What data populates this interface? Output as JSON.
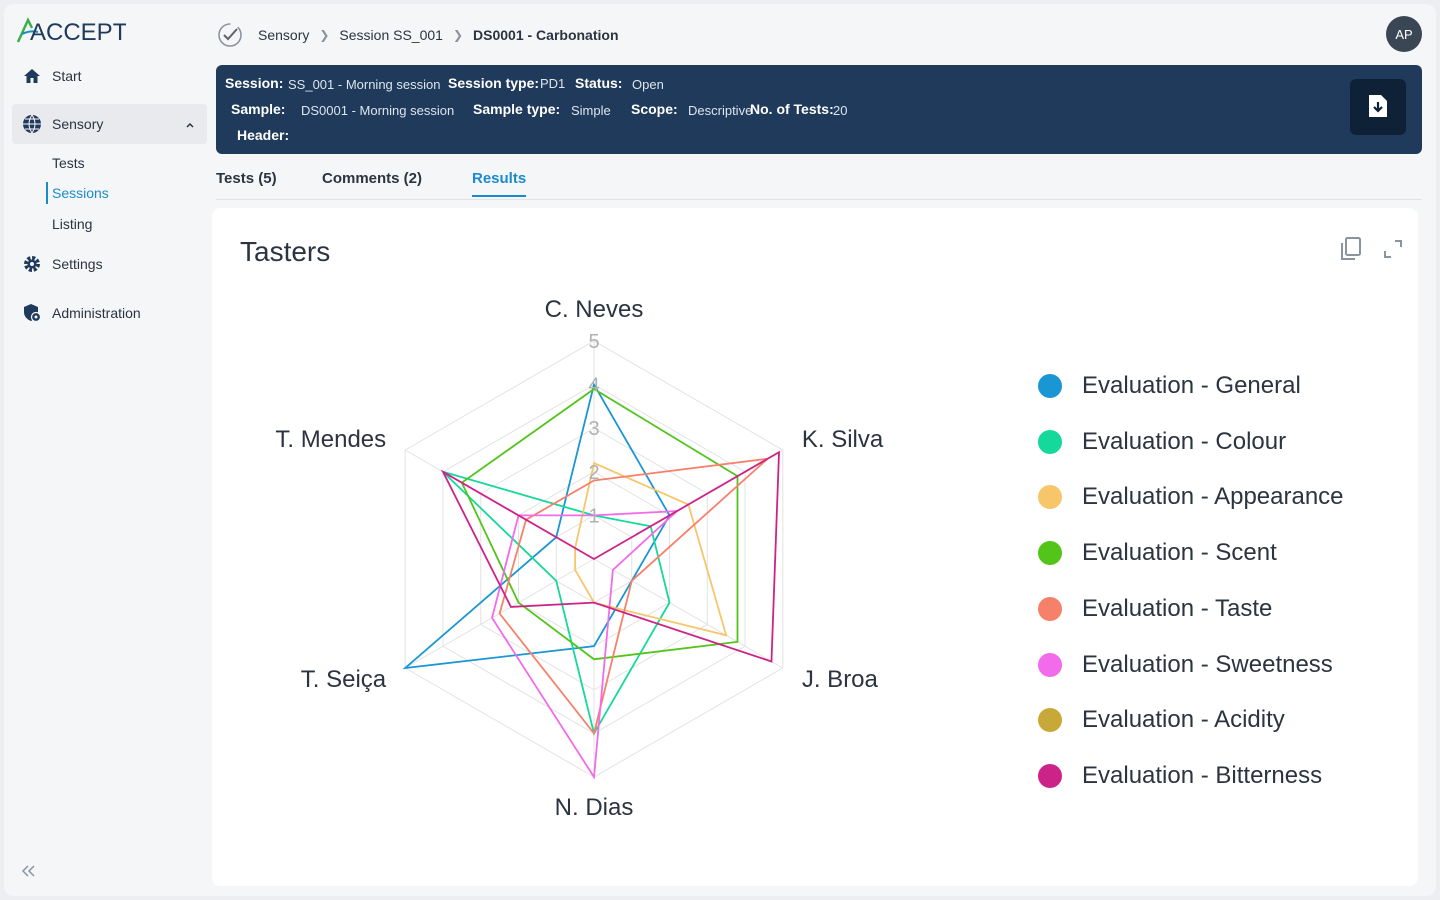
{
  "app": {
    "logo_text": "ACCEPT"
  },
  "sidebar": {
    "items": [
      {
        "label": "Start",
        "icon": "home-icon"
      },
      {
        "label": "Sensory",
        "icon": "globe-icon"
      },
      {
        "label": "Settings",
        "icon": "gear-icon"
      },
      {
        "label": "Administration",
        "icon": "shield-icon"
      }
    ],
    "sub_items": [
      {
        "label": "Tests"
      },
      {
        "label": "Sessions"
      },
      {
        "label": "Listing"
      }
    ]
  },
  "breadcrumb": [
    "Sensory",
    "Session SS_001",
    "DS0001 - Carbonation"
  ],
  "user": {
    "initials": "AP"
  },
  "banner": {
    "session_label": "Session:",
    "session_value": "SS_001 - Morning session",
    "session_type_label": "Session type:",
    "session_type_value": "PD1",
    "status_label": "Status:",
    "status_value": "Open",
    "sample_label": "Sample:",
    "sample_value": "DS0001 - Morning session",
    "sample_type_label": "Sample type:",
    "sample_type_value": "Simple",
    "scope_label": "Scope:",
    "scope_value": "Descriptive",
    "tests_label": "No. of Tests:",
    "tests_value": "20",
    "header_label": "Header:"
  },
  "tabs": [
    {
      "label": "Tests (5)"
    },
    {
      "label": "Comments (2)"
    },
    {
      "label": "Results"
    }
  ],
  "card": {
    "title": "Tasters"
  },
  "chart_data": {
    "type": "radar",
    "axes": [
      "C. Neves",
      "K. Silva",
      "J. Broa",
      "N. Dias",
      "T. Seiça",
      "T. Mendes"
    ],
    "radial_range": [
      0,
      5
    ],
    "radial_ticks": [
      "1",
      "2",
      "3",
      "4",
      "5"
    ],
    "legend_position": "right",
    "series": [
      {
        "name": "Evaluation - General",
        "color": "#1a96d4",
        "values": [
          4,
          2,
          1,
          2,
          5,
          1
        ]
      },
      {
        "name": "Evaluation - Colour",
        "color": "#14d99a",
        "values": [
          1,
          1.5,
          2,
          4,
          1,
          4
        ]
      },
      {
        "name": "Evaluation - Appearance",
        "color": "#f7c56a",
        "values": [
          2.2,
          2.5,
          3.5,
          1,
          0.5,
          0.5
        ]
      },
      {
        "name": "Evaluation - Scent",
        "color": "#52c41a",
        "values": [
          3.9,
          3.8,
          3.8,
          2.3,
          2,
          3.5
        ]
      },
      {
        "name": "Evaluation - Taste",
        "color": "#f7806a",
        "values": [
          1.8,
          4.6,
          1,
          4,
          2.5,
          1.8
        ]
      },
      {
        "name": "Evaluation - Sweetness",
        "color": "#f26bea",
        "values": [
          1,
          2.2,
          0.5,
          5,
          2.7,
          2
        ]
      },
      {
        "name": "Evaluation - Acidity",
        "color": "#c9a83a",
        "values": []
      },
      {
        "name": "Evaluation - Bitterness",
        "color": "#cc2388",
        "values": [
          0,
          4.9,
          4.7,
          1,
          2.2,
          4
        ]
      }
    ]
  }
}
